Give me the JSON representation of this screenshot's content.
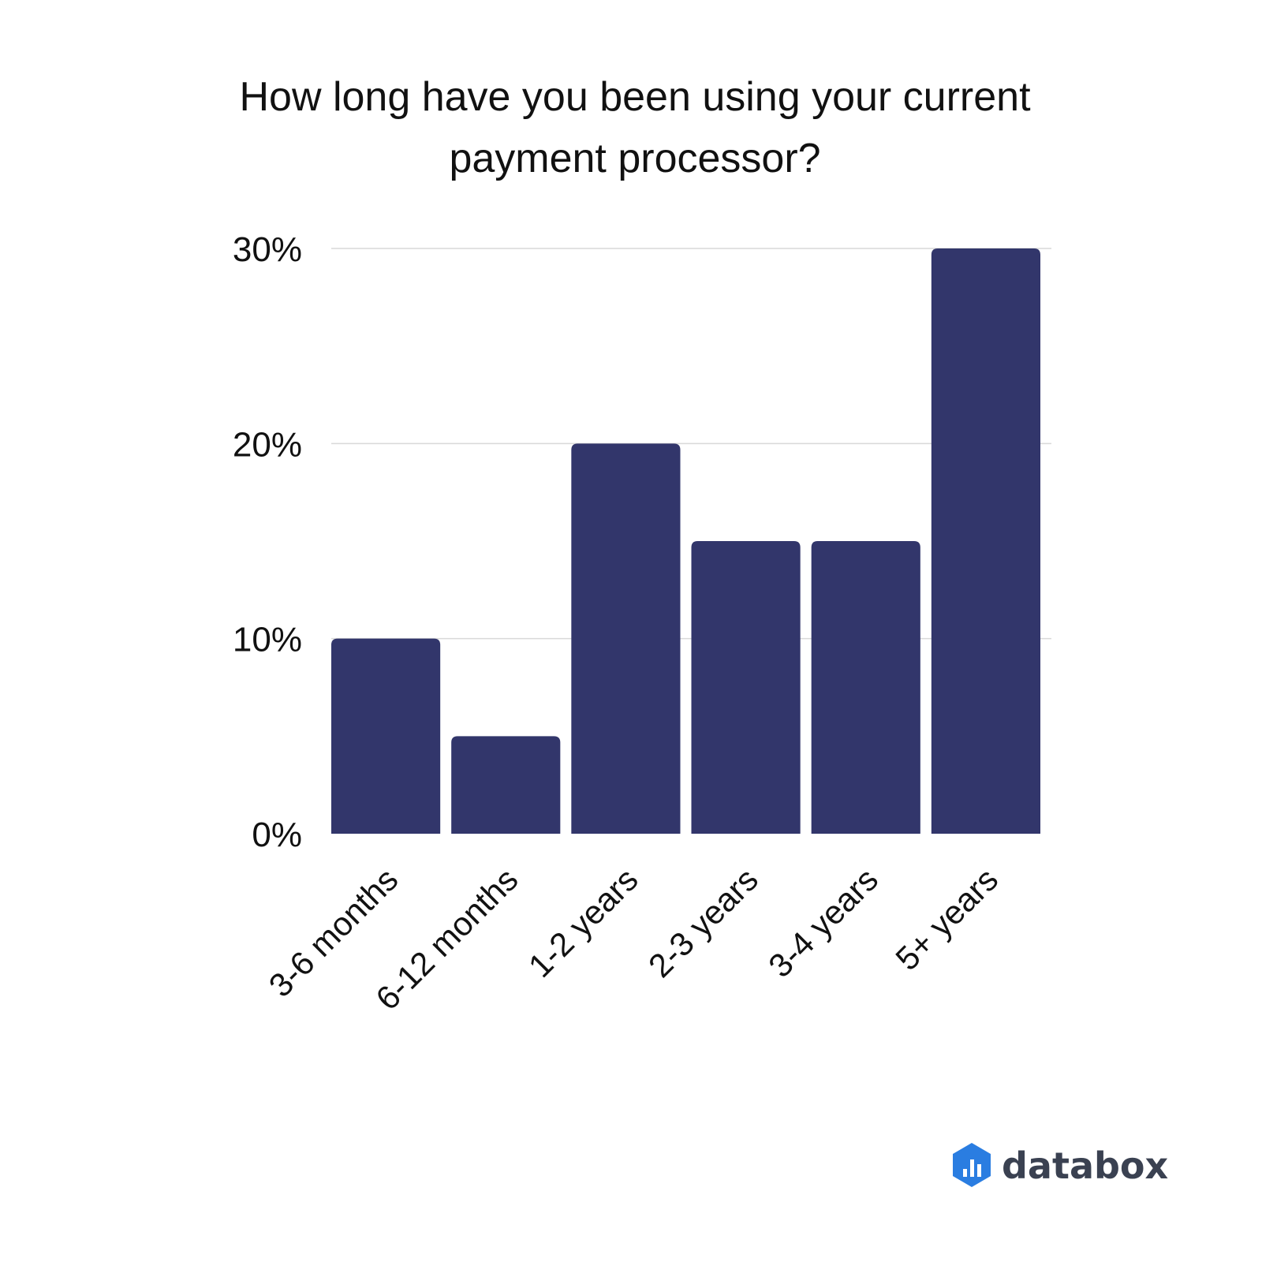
{
  "chart_data": {
    "type": "bar",
    "title": "How long have you been using your current payment processor?",
    "title_lines": [
      "How long have you been using your current",
      "payment processor?"
    ],
    "categories": [
      "3-6 months",
      "6-12 months",
      "1-2 years",
      "2-3 years",
      "3-4 years",
      "5+ years"
    ],
    "values": [
      10,
      5,
      20,
      15,
      15,
      30
    ],
    "unit": "%",
    "ylim": [
      0,
      30
    ],
    "yticks": [
      0,
      10,
      20,
      30
    ],
    "ytick_labels": [
      "0%",
      "10%",
      "20%",
      "30%"
    ],
    "xlabel": "",
    "ylabel": "",
    "grid": true,
    "legend": "none",
    "bar_color": "#32366b"
  },
  "branding": {
    "logo_text": "databox",
    "logo_icon": "databox-logo-icon",
    "logo_color": "#2a7de1"
  }
}
